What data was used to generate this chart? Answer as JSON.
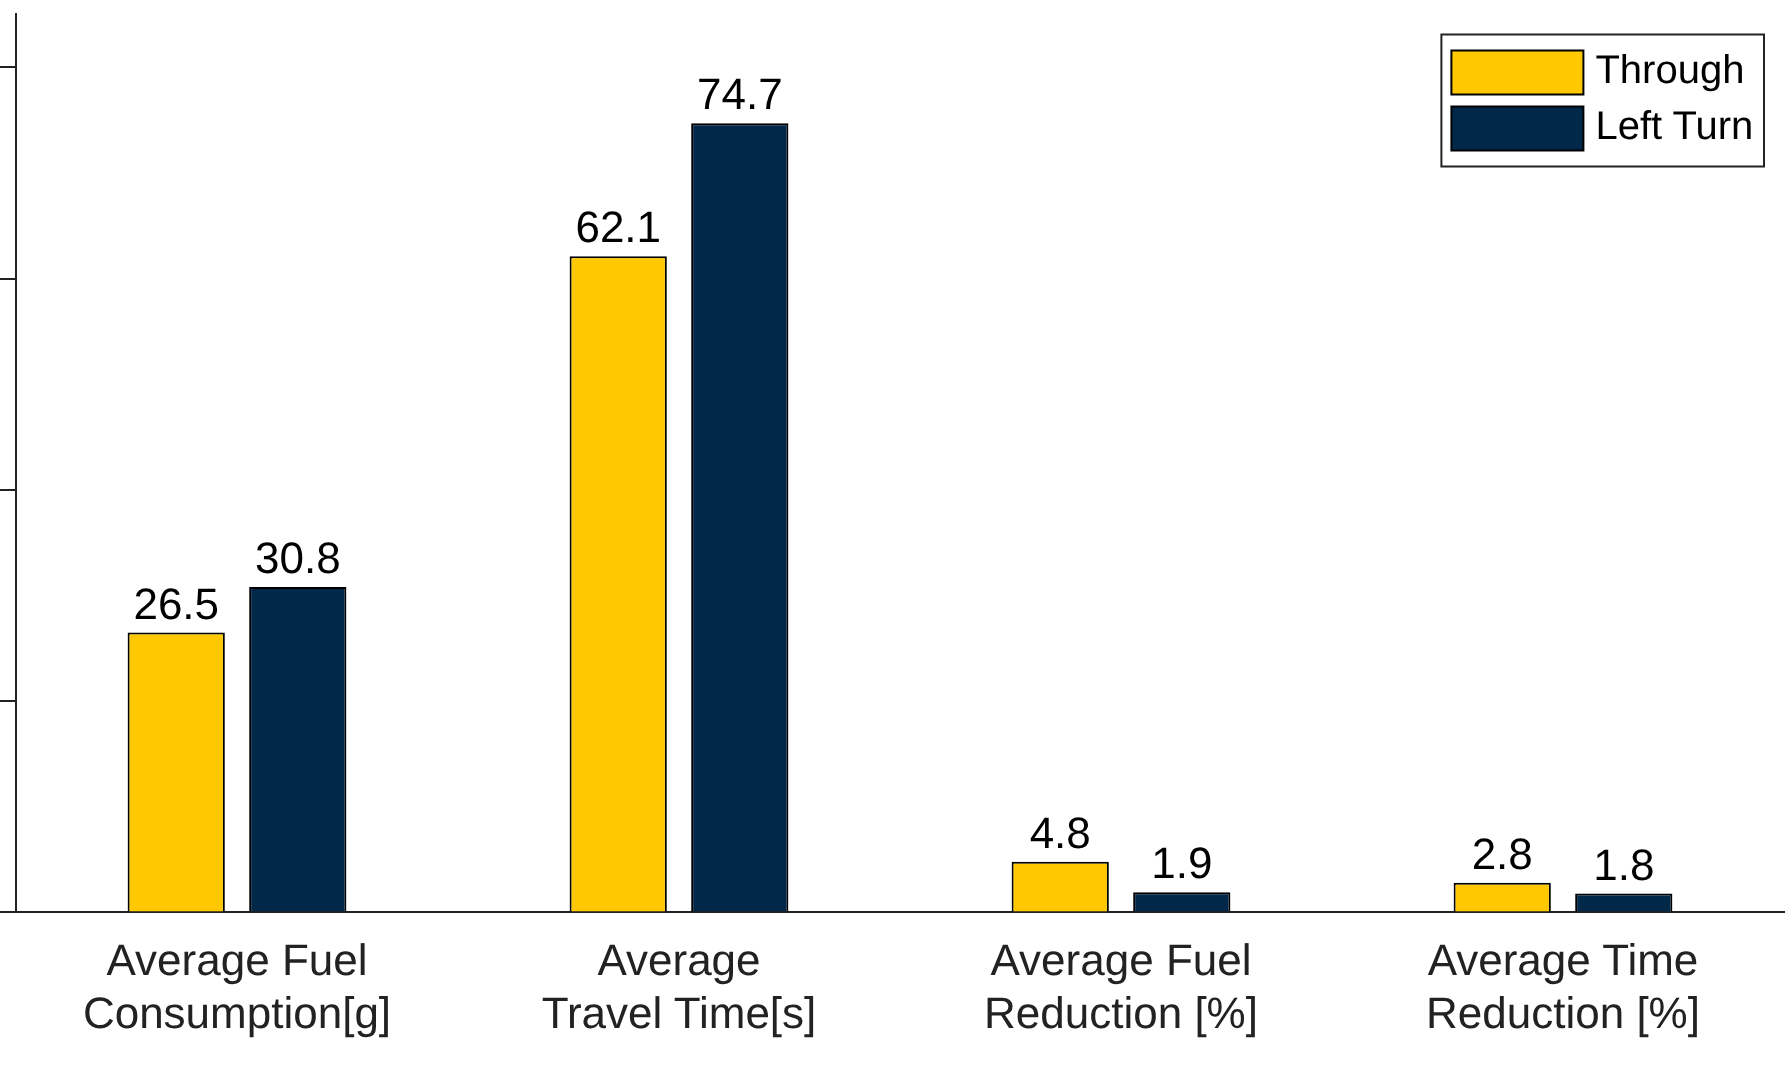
{
  "chart_data": {
    "type": "bar",
    "categories": [
      "Average Fuel\nConsumption[g]",
      "Average\nTravel Time[s]",
      "Average Fuel\nReduction [%]",
      "Average Time\nReduction [%]"
    ],
    "series": [
      {
        "name": "Through",
        "color": "#ffc800",
        "values": [
          26.5,
          62.1,
          4.8,
          2.8
        ]
      },
      {
        "name": "Left Turn",
        "color": "#012749",
        "values": [
          30.8,
          74.7,
          1.9,
          1.8
        ]
      }
    ],
    "ylim": [
      0,
      85
    ],
    "yticks": [
      {
        "value": 0,
        "label": null
      },
      {
        "value": 20,
        "label": null
      },
      {
        "value": 40,
        "label": null
      },
      {
        "value": 60,
        "label": null
      },
      {
        "value": 80,
        "label": null
      }
    ],
    "tick_labels": "x",
    "data_labels": true,
    "legend": "top right",
    "grid": false
  }
}
